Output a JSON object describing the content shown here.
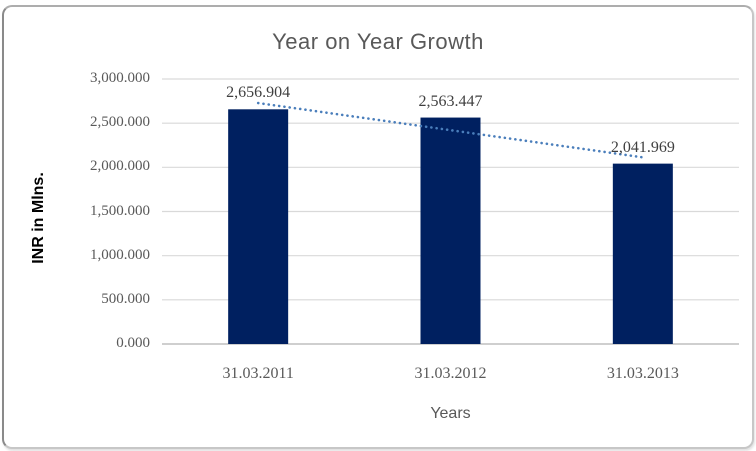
{
  "chart_data": {
    "type": "bar",
    "title": "Year on Year Growth",
    "xlabel": "Years",
    "ylabel": "INR in Mlns.",
    "categories": [
      "31.03.2011",
      "31.03.2012",
      "31.03.2013"
    ],
    "values": [
      2656.904,
      2563.447,
      2041.969
    ],
    "value_labels": [
      "2,656.904",
      "2,563.447",
      "2,041.969"
    ],
    "ylim": [
      0,
      3000
    ],
    "ytick_step": 500,
    "ytick_labels": [
      "0.000",
      "500.000",
      "1,000.000",
      "1,500.000",
      "2,000.000",
      "2,500.000",
      "3,000.000"
    ],
    "grid": true,
    "legend": "none",
    "bar_color": "#002060",
    "trendline": {
      "type": "linear",
      "style": "dotted",
      "color": "#4a7ebb",
      "start_value": 2728,
      "end_value": 2113
    },
    "colors": {
      "title": "#595959",
      "tick_label": "#595959",
      "data_label": "#3f3f3f",
      "gridline": "#d9d9d9",
      "axis_line": "#bfbfbf"
    }
  }
}
